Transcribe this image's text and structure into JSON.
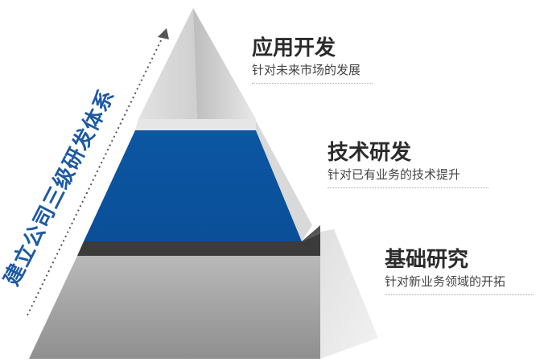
{
  "vertical_title": "建立公司三级研发体系",
  "tiers": [
    {
      "title": "应用开发",
      "subtitle": "针对未来市场的发展"
    },
    {
      "title": "技术研发",
      "subtitle": "针对已有业务的技术提升"
    },
    {
      "title": "基础研究",
      "subtitle": "针对新业务领域的开拓"
    }
  ],
  "colors": {
    "tech_band": "#0d5aa6",
    "title_text": "#1d5aa3",
    "dark_band": "#3a3a3a"
  }
}
